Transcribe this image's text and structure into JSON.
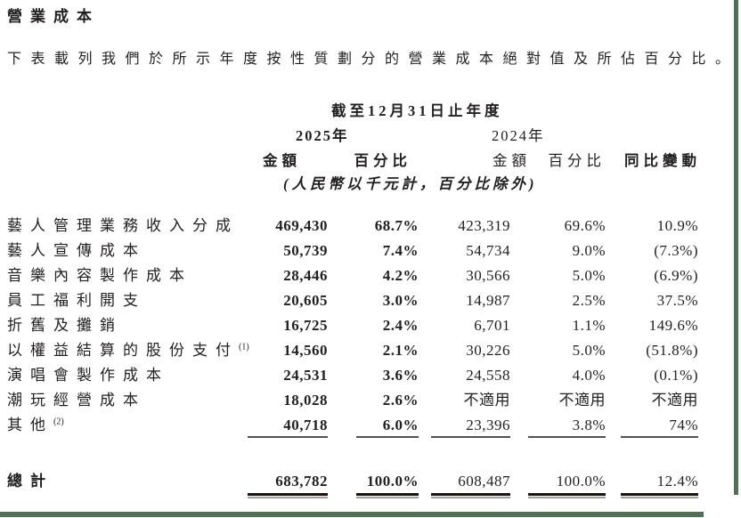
{
  "page": {
    "title": "營業成本",
    "intro": "下表載列我們於所示年度按性質劃分的營業成本絕對值及所佔百分比。",
    "frame_color": "#4e7253",
    "text_color": "#221f1e"
  },
  "table": {
    "period_header": "截至12月31日止年度",
    "year_2025": "2025年",
    "year_2024": "2024年",
    "headers": {
      "amount_2025": "金額",
      "percent_2025": "百分比",
      "amount_2024": "金額",
      "percent_2024": "百分比",
      "yoy": "同比變動"
    },
    "unit_note": "(人民幣以千元計，百分比除外)",
    "rows": [
      {
        "label": "藝人管理業務收入分成",
        "footnote": "",
        "a2025": "469,430",
        "p2025": "68.7%",
        "a2024": "423,319",
        "p2024": "69.6%",
        "yoy": "10.9%"
      },
      {
        "label": "藝人宣傳成本",
        "footnote": "",
        "a2025": "50,739",
        "p2025": "7.4%",
        "a2024": "54,734",
        "p2024": "9.0%",
        "yoy": "(7.3%)"
      },
      {
        "label": "音樂內容製作成本",
        "footnote": "",
        "a2025": "28,446",
        "p2025": "4.2%",
        "a2024": "30,566",
        "p2024": "5.0%",
        "yoy": "(6.9%)"
      },
      {
        "label": "員工福利開支",
        "footnote": "",
        "a2025": "20,605",
        "p2025": "3.0%",
        "a2024": "14,987",
        "p2024": "2.5%",
        "yoy": "37.5%"
      },
      {
        "label": "折舊及攤銷",
        "footnote": "",
        "a2025": "16,725",
        "p2025": "2.4%",
        "a2024": "6,701",
        "p2024": "1.1%",
        "yoy": "149.6%"
      },
      {
        "label": "以權益結算的股份支付",
        "footnote": "(1)",
        "a2025": "14,560",
        "p2025": "2.1%",
        "a2024": "30,226",
        "p2024": "5.0%",
        "yoy": "(51.8%)"
      },
      {
        "label": "演唱會製作成本",
        "footnote": "",
        "a2025": "24,531",
        "p2025": "3.6%",
        "a2024": "24,558",
        "p2024": "4.0%",
        "yoy": "(0.1%)"
      },
      {
        "label": "潮玩經營成本",
        "footnote": "",
        "a2025": "18,028",
        "p2025": "2.6%",
        "a2024": "不適用",
        "p2024": "不適用",
        "yoy": "不適用"
      },
      {
        "label": "其他",
        "footnote": "(2)",
        "a2025": "40,718",
        "p2025": "6.0%",
        "a2024": "23,396",
        "p2024": "3.8%",
        "yoy": "74%"
      }
    ],
    "total": {
      "label": "總計",
      "a2025": "683,782",
      "p2025": "100.0%",
      "a2024": "608,487",
      "p2024": "100.0%",
      "yoy": "12.4%"
    }
  }
}
